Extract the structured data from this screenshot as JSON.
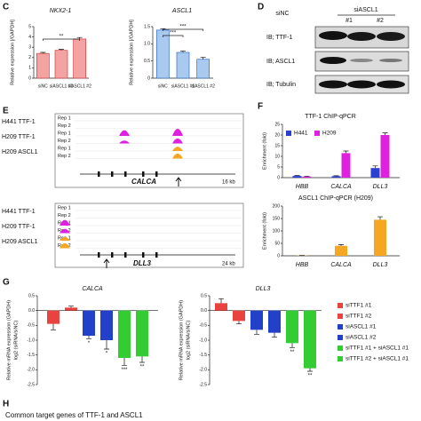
{
  "panel_labels": [
    "C",
    "D",
    "E",
    "F",
    "G",
    "H"
  ],
  "caption": "Common target genes of TTF-1 and ASCL1",
  "blot": {
    "columns": [
      "siNC",
      "siASCL1",
      "#1",
      "#2"
    ],
    "rows": [
      "IB; TTF-1",
      "IB; ASCL1",
      "IB; Tubulin"
    ]
  },
  "tracks": [
    {
      "samples": [
        "H441 TTF-1",
        "H209 TTF-1",
        "H209 ASCL1"
      ],
      "reps": [
        "Rep 1",
        "Rep 2",
        "Rep 1",
        "Rep 2",
        "Rep 1",
        "Rep 2"
      ],
      "gene": "CALCA",
      "scale": "16 kb"
    },
    {
      "samples": [
        "H441 TTF-1",
        "H209 TTF-1",
        "H209 ASCL1"
      ],
      "reps": [
        "Rep 1",
        "Rep 2",
        "Rep 1",
        "Rep 2",
        "Rep 1",
        "Rep 2"
      ],
      "gene": "DLL3",
      "scale": "24 kb"
    }
  ],
  "chart_data": [
    {
      "type": "bar",
      "title": "NKX2-1",
      "y_label": [
        "Relative expression [/GAPDH]"
      ],
      "categories": [
        "siNC",
        "siASCL1 #1",
        "siASCL1 #2"
      ],
      "values": [
        2.4,
        2.7,
        3.8
      ],
      "errors": [
        0.1,
        0.1,
        0.15
      ],
      "color": "#f4a3a3",
      "edge": "#d23c3c",
      "ylim": [
        0,
        5
      ],
      "yticks": [
        0,
        1,
        2,
        3,
        4,
        5
      ],
      "annotations": [
        "**"
      ]
    },
    {
      "type": "bar",
      "title": "ASCL1",
      "y_label": [
        "Relative expression [/GAPDH]"
      ],
      "categories": [
        "siNC",
        "siASCL1 #1",
        "siASCL1 #2"
      ],
      "values": [
        1.4,
        0.75,
        0.55
      ],
      "errors": [
        0.04,
        0.04,
        0.06
      ],
      "color": "#a9c9ee",
      "edge": "#2e6fc6",
      "ylim": [
        0,
        1.5
      ],
      "yticks": [
        0,
        0.5,
        {
          "value": 1,
          "label": "1.0"
        },
        1.5
      ],
      "annotations": [
        "***",
        "***"
      ]
    },
    {
      "type": "bar",
      "title": "TTF-1 ChIP-qPCR",
      "y_label": [
        "Enrichment (fold)"
      ],
      "categories": [
        "HBB",
        "CALCA",
        "DLL3"
      ],
      "legend": "top",
      "series": [
        {
          "name": "H441",
          "color": "#2b3fd1",
          "values": [
            0.8,
            0.7,
            4.5
          ],
          "errors": [
            0.2,
            0.2,
            1
          ]
        },
        {
          "name": "H209",
          "color": "#e020e0",
          "values": [
            0.5,
            11.5,
            20
          ],
          "errors": [
            0.2,
            1,
            1
          ]
        }
      ],
      "ylim": [
        0,
        25
      ],
      "yticks": [
        0,
        5,
        10,
        15,
        20,
        25
      ]
    },
    {
      "type": "bar",
      "title": "ASCL1 ChIP-qPCR (H209)",
      "y_label": [
        "Enrichment (fold)"
      ],
      "categories": [
        "HBB",
        "CALCA",
        "DLL3"
      ],
      "values": [
        1,
        40,
        145
      ],
      "errors": [
        0.5,
        5,
        12
      ],
      "color": "#f5a623",
      "ylim": [
        0,
        200
      ],
      "yticks": [
        0,
        50,
        100,
        150,
        200
      ]
    },
    {
      "type": "bar",
      "title": "CALCA",
      "y_label": [
        "Relative mRNA expression (GAPDH)",
        "log2 (siRNA/siNC)"
      ],
      "categories": [
        null
      ],
      "series": [
        {
          "name": "siTTF1 #1",
          "color": "#e8433f",
          "values": [
            -0.45
          ],
          "errors": [
            0.2
          ]
        },
        {
          "name": "siTTF1 #2",
          "color": "#e8433f",
          "values": [
            0.1
          ],
          "errors": [
            0.05
          ]
        },
        {
          "name": "siASCL1 #1",
          "color": "#2240c8",
          "values": [
            -0.85
          ],
          "errors": [
            0.1
          ],
          "annotation": "*"
        },
        {
          "name": "siASCL1 #2",
          "color": "#2240c8",
          "values": [
            -1.0
          ],
          "errors": [
            0.3
          ],
          "annotation": "*"
        },
        {
          "name": "siTTF1 #1 + siASCL1 #1",
          "color": "#33cc33",
          "values": [
            -1.6
          ],
          "errors": [
            0.25
          ],
          "annotation": "***"
        },
        {
          "name": "siTTF1 #2 + siASCL1 #1",
          "color": "#33cc33",
          "values": [
            -1.55
          ],
          "errors": [
            0.2
          ],
          "annotation": "**"
        }
      ],
      "ylim": [
        -2.5,
        0.5
      ],
      "yticks": [
        0.5,
        {
          "value": 0,
          "label": "0.0"
        },
        -0.5,
        {
          "value": -1,
          "label": "-1.0"
        },
        -1.5,
        {
          "value": -2,
          "label": "-2.0"
        },
        -2.5
      ]
    },
    {
      "type": "bar",
      "title": "DLL3",
      "y_label": [
        "Relative mRNA expression (GAPDH)",
        "log2 (siRNA/siNC)"
      ],
      "categories": [
        null
      ],
      "legend": "right",
      "series": [
        {
          "name": "siTTF1 #1",
          "color": "#e8433f",
          "values": [
            0.25
          ],
          "errors": [
            0.15
          ]
        },
        {
          "name": "siTTF1 #2",
          "color": "#e8433f",
          "values": [
            -0.35
          ],
          "errors": [
            0.1
          ]
        },
        {
          "name": "siASCL1 #1",
          "color": "#2240c8",
          "values": [
            -0.65
          ],
          "errors": [
            0.15
          ]
        },
        {
          "name": "siASCL1 #2",
          "color": "#2240c8",
          "values": [
            -0.75
          ],
          "errors": [
            0.15
          ]
        },
        {
          "name": "siTTF1 #1 + siASCL1 #1",
          "color": "#33cc33",
          "values": [
            -1.1
          ],
          "errors": [
            0.15
          ],
          "annotation": "**"
        },
        {
          "name": "siTTF1 #2 + siASCL1 #1",
          "color": "#33cc33",
          "values": [
            -1.95
          ],
          "errors": [
            0.1
          ],
          "annotation": "**"
        }
      ],
      "ylim": [
        -2.5,
        0.5
      ],
      "yticks": [
        0.5,
        {
          "value": 0,
          "label": "0.0"
        },
        -0.5,
        {
          "value": -1,
          "label": "-1.0"
        },
        -1.5,
        {
          "value": -2,
          "label": "-2.0"
        },
        -2.5
      ]
    }
  ]
}
